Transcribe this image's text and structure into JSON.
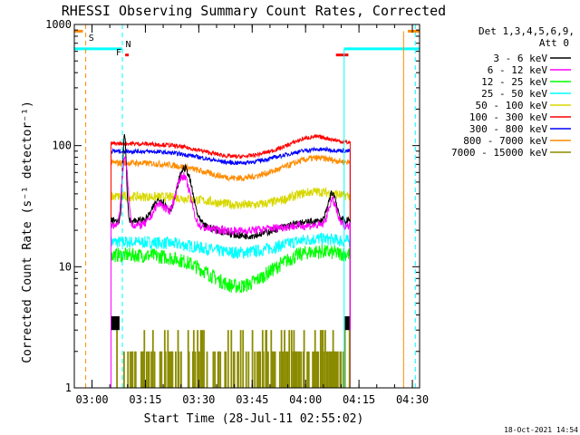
{
  "chart_data": {
    "type": "line",
    "title": "RHESSI Observing Summary Count Rates, Corrected",
    "xlabel": "Start Time (28-Jul-11 02:55:02)",
    "ylabel": "Corrected Count Rate (s⁻¹ detector⁻¹)",
    "y_scale": "log",
    "ylim": [
      1,
      1000
    ],
    "xlim_minutes": [
      0,
      97
    ],
    "x_ticks": [
      {
        "label": "03:00",
        "min": 4.97
      },
      {
        "label": "03:15",
        "min": 19.97
      },
      {
        "label": "03:30",
        "min": 34.97
      },
      {
        "label": "03:45",
        "min": 49.97
      },
      {
        "label": "04:00",
        "min": 64.97
      },
      {
        "label": "04:15",
        "min": 79.97
      },
      {
        "label": "04:30",
        "min": 94.97
      }
    ],
    "y_ticks": [
      {
        "label": "1",
        "value": 1
      },
      {
        "label": "10",
        "value": 10
      },
      {
        "label": "100",
        "value": 100
      },
      {
        "label": "1000",
        "value": 1000
      }
    ],
    "legend": {
      "header_line1": "Det 1,3,4,5,6,9,",
      "header_line2": "Att 0",
      "position": "right"
    },
    "series": [
      {
        "name": "3 - 6 keV",
        "color": "#000000",
        "kind": "black"
      },
      {
        "name": "6 - 12 keV",
        "color": "#ff00ff",
        "kind": "magenta"
      },
      {
        "name": "12 - 25 keV",
        "color": "#00ff00",
        "kind": "green"
      },
      {
        "name": "25 - 50 keV",
        "color": "#00ffff",
        "kind": "cyan"
      },
      {
        "name": "50 - 100 keV",
        "color": "#d8d800",
        "kind": "yellow"
      },
      {
        "name": "100 - 300 keV",
        "color": "#ff0000",
        "kind": "red"
      },
      {
        "name": "300 - 800 keV",
        "color": "#0000ff",
        "kind": "blue"
      },
      {
        "name": "800 - 7000 keV",
        "color": "#ff8c00",
        "kind": "orange"
      },
      {
        "name": "7000 - 15000 keV",
        "color": "#8b8b00",
        "kind": "olive"
      }
    ],
    "markers": [
      {
        "label": "S",
        "color": "#ff8c00"
      },
      {
        "label": "N",
        "color": "#00ffff"
      },
      {
        "label": "F",
        "color": "#ff0000"
      }
    ],
    "timestamp": "18-Oct-2021 14:54"
  }
}
